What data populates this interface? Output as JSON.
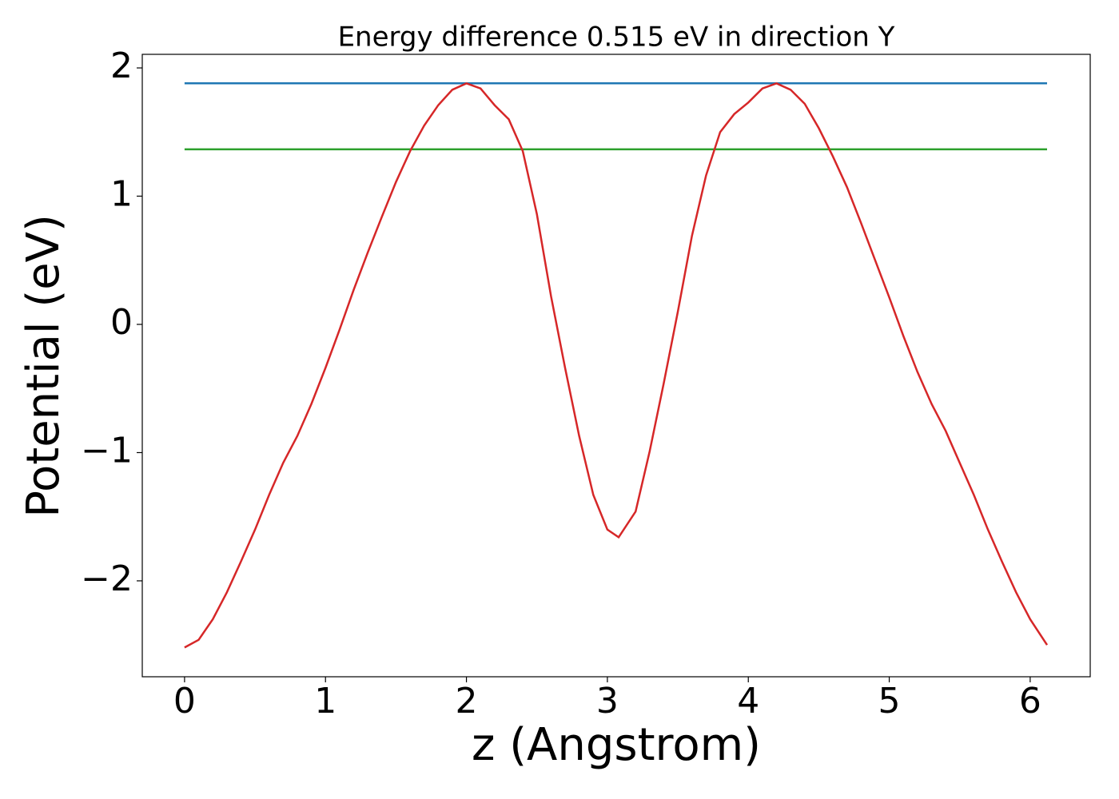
{
  "chart_data": {
    "type": "line",
    "title": "Energy difference 0.515 eV in direction Y",
    "xlabel": "z (Angstrom)",
    "ylabel": "Potential (eV)",
    "xlim": [
      -0.3,
      6.426
    ],
    "xticks": [
      0,
      1,
      2,
      3,
      4,
      5,
      6
    ],
    "ylim": [
      -2.748,
      2.106
    ],
    "yticks": [
      {
        "value": -2,
        "label": "−2"
      },
      {
        "value": -1,
        "label": "−1"
      },
      0,
      1,
      2
    ],
    "series": [
      {
        "color": "#1f77b4",
        "x": [
          0,
          6.12
        ],
        "values": [
          1.88,
          1.88
        ]
      },
      {
        "color": "#2ca02c",
        "x": [
          0,
          6.12
        ],
        "values": [
          1.365,
          1.365
        ]
      },
      {
        "color": "#d62728",
        "x": [
          0,
          0.1,
          0.2,
          0.3,
          0.4,
          0.5,
          0.6,
          0.7,
          0.8,
          0.9,
          1.0,
          1.1,
          1.2,
          1.3,
          1.4,
          1.5,
          1.6,
          1.7,
          1.8,
          1.9,
          2.0,
          2.1,
          2.2,
          2.3,
          2.4,
          2.5,
          2.6,
          2.7,
          2.8,
          2.9,
          3.0,
          3.08,
          3.2,
          3.3,
          3.4,
          3.5,
          3.6,
          3.7,
          3.8,
          3.9,
          4.0,
          4.1,
          4.2,
          4.3,
          4.4,
          4.5,
          4.6,
          4.7,
          4.8,
          4.9,
          5.0,
          5.1,
          5.2,
          5.3,
          5.4,
          5.5,
          5.6,
          5.7,
          5.8,
          5.9,
          6.0,
          6.12
        ],
        "values": [
          -2.52,
          -2.46,
          -2.3,
          -2.09,
          -1.85,
          -1.6,
          -1.33,
          -1.08,
          -0.87,
          -0.62,
          -0.34,
          -0.04,
          0.27,
          0.56,
          0.84,
          1.11,
          1.35,
          1.55,
          1.71,
          1.83,
          1.88,
          1.84,
          1.71,
          1.6,
          1.35,
          0.86,
          0.22,
          -0.34,
          -0.87,
          -1.33,
          -1.6,
          -1.66,
          -1.46,
          -0.99,
          -0.46,
          0.1,
          0.69,
          1.16,
          1.5,
          1.64,
          1.73,
          1.84,
          1.88,
          1.83,
          1.72,
          1.53,
          1.31,
          1.07,
          0.79,
          0.5,
          0.21,
          -0.09,
          -0.37,
          -0.62,
          -0.83,
          -1.08,
          -1.33,
          -1.6,
          -1.85,
          -2.09,
          -2.3,
          -2.5
        ]
      }
    ]
  }
}
